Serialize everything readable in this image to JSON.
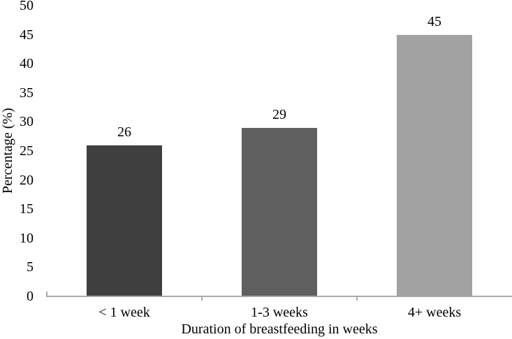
{
  "chart_data": {
    "type": "bar",
    "title": "",
    "categories": [
      "< 1 week",
      "1-3 weeks",
      "4+ weeks"
    ],
    "values": [
      26,
      29,
      45
    ],
    "data_labels": [
      "26",
      "29",
      "45"
    ],
    "bar_colors": [
      "#3f3f3f",
      "#5f5f5f",
      "#a2a2a2"
    ],
    "xlabel": "Duration of breastfeeding in weeks",
    "ylabel": "Percentage (%)",
    "ylim": [
      0,
      50
    ],
    "ytick_step": 5,
    "ytick_labels": [
      "0",
      "5",
      "10",
      "15",
      "20",
      "25",
      "30",
      "35",
      "40",
      "45",
      "50"
    ],
    "grid": false,
    "legend": "none",
    "axis_line_color": "#a9a9a9",
    "text_color": "#000000",
    "background": "#ffffff"
  }
}
